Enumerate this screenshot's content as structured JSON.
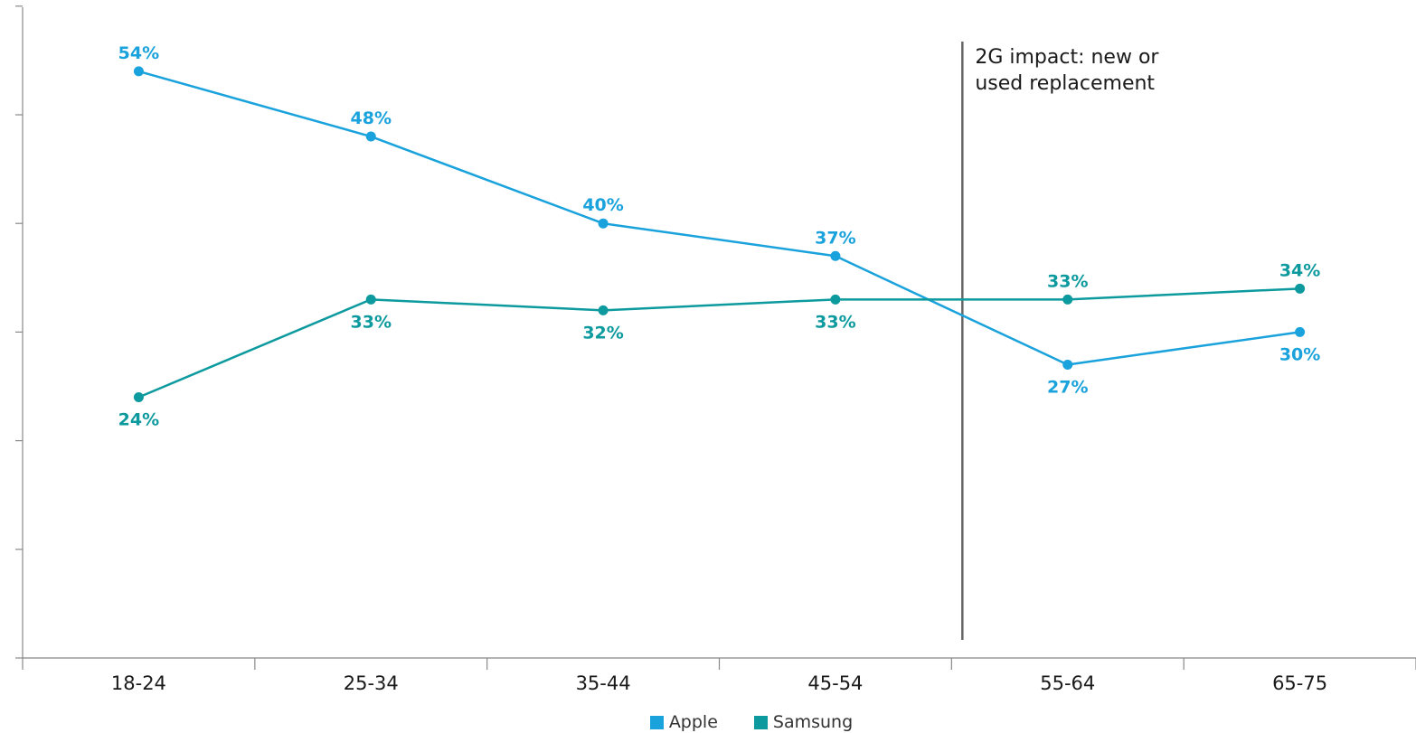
{
  "chart_data": {
    "type": "line",
    "categories": [
      "18-24",
      "25-34",
      "35-44",
      "45-54",
      "55-64",
      "65-75"
    ],
    "series": [
      {
        "name": "Apple",
        "values": [
          54,
          48,
          40,
          37,
          27,
          30
        ],
        "labels": [
          "54%",
          "48%",
          "40%",
          "37%",
          "27%",
          "30%"
        ],
        "color": "#1AA2DC"
      },
      {
        "name": "Samsung",
        "values": [
          24,
          33,
          32,
          33,
          33,
          34
        ],
        "labels": [
          "24%",
          "33%",
          "32%",
          "33%",
          "33%",
          "34%"
        ],
        "color": "#0D9A9E"
      }
    ],
    "ylim": [
      0,
      60
    ],
    "annotation": {
      "text_line1": "2G impact: new or",
      "text_line2": "used replacement",
      "x_position": "between 45-54 and 55-64"
    },
    "grid": false,
    "legend_position": "bottom-center",
    "axis_color": "#888888",
    "annotation_line_color": "#666666"
  }
}
